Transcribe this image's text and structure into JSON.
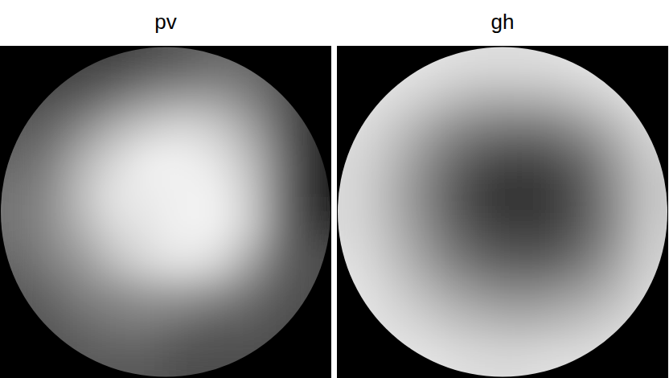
{
  "chart_data": [
    {
      "type": "heatmap",
      "title": "pv",
      "zlim": [
        0,
        100
      ],
      "cells": [
        [
          25,
          25,
          25,
          25,
          30,
          35,
          40,
          40,
          35,
          30
        ],
        [
          30,
          30,
          35,
          45,
          55,
          60,
          60,
          50,
          35,
          25
        ],
        [
          35,
          40,
          55,
          70,
          80,
          85,
          80,
          65,
          40,
          15
        ],
        [
          40,
          50,
          70,
          85,
          95,
          95,
          90,
          75,
          45,
          10
        ],
        [
          45,
          55,
          75,
          90,
          92,
          95,
          95,
          80,
          45,
          10
        ],
        [
          45,
          55,
          70,
          85,
          90,
          95,
          95,
          80,
          45,
          20
        ],
        [
          40,
          50,
          60,
          75,
          85,
          90,
          85,
          65,
          40,
          30
        ],
        [
          35,
          40,
          50,
          55,
          60,
          60,
          55,
          45,
          35,
          30
        ],
        [
          30,
          35,
          40,
          45,
          45,
          40,
          35,
          35,
          30,
          30
        ],
        [
          30,
          30,
          35,
          35,
          35,
          30,
          30,
          30,
          30,
          30
        ]
      ]
    },
    {
      "type": "heatmap",
      "title": "gh",
      "zlim": [
        0,
        100
      ],
      "cells": [
        [
          90,
          90,
          90,
          88,
          87,
          87,
          88,
          90,
          90,
          90
        ],
        [
          90,
          88,
          82,
          75,
          70,
          70,
          72,
          78,
          85,
          90
        ],
        [
          88,
          80,
          68,
          55,
          48,
          45,
          48,
          58,
          72,
          85
        ],
        [
          85,
          75,
          58,
          42,
          30,
          26,
          30,
          42,
          62,
          80
        ],
        [
          85,
          72,
          55,
          36,
          22,
          18,
          22,
          36,
          58,
          78
        ],
        [
          85,
          74,
          58,
          40,
          28,
          24,
          26,
          38,
          58,
          80
        ],
        [
          88,
          78,
          65,
          50,
          40,
          36,
          38,
          48,
          65,
          82
        ],
        [
          90,
          84,
          75,
          65,
          58,
          55,
          58,
          64,
          74,
          86
        ],
        [
          90,
          88,
          84,
          78,
          74,
          72,
          74,
          78,
          84,
          88
        ],
        [
          90,
          90,
          90,
          88,
          86,
          86,
          88,
          88,
          90,
          90
        ]
      ]
    }
  ]
}
